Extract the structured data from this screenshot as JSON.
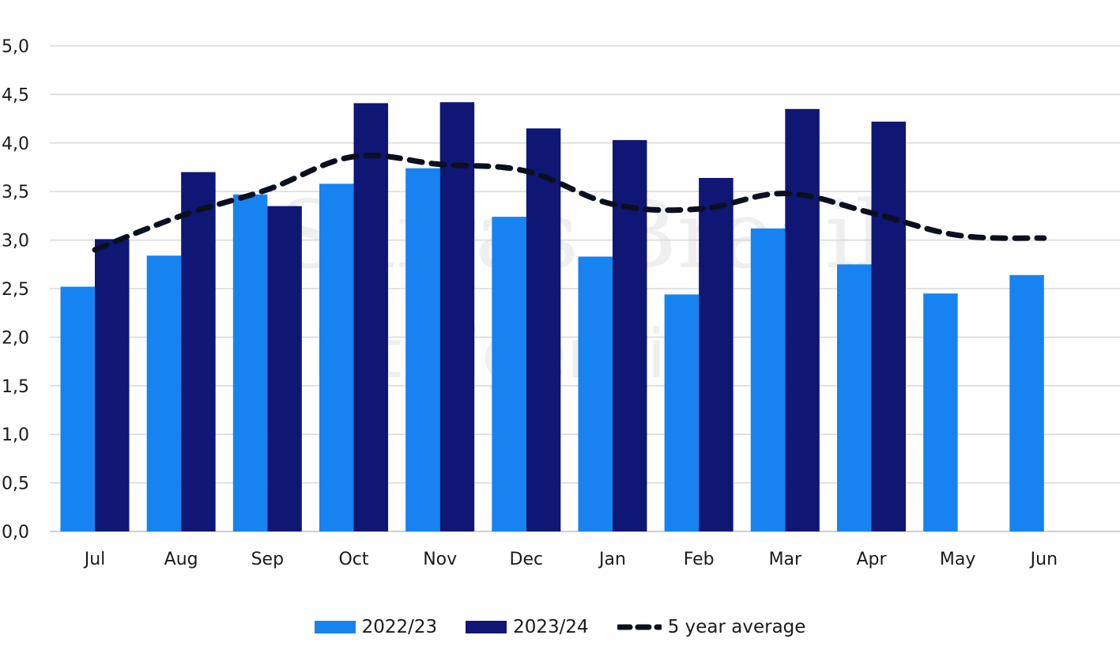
{
  "chart_data": {
    "type": "bar",
    "title": "",
    "xlabel": "",
    "ylabel": "",
    "ylim": [
      0,
      5
    ],
    "yticks": [
      "0,0",
      "0,5",
      "1,0",
      "1,5",
      "2,0",
      "2,5",
      "3,0",
      "3,5",
      "4,0",
      "4,5",
      "5,0"
    ],
    "grid": true,
    "legend_position": "bottom",
    "categories": [
      "Jul",
      "Aug",
      "Sep",
      "Oct",
      "Nov",
      "Dec",
      "Jan",
      "Feb",
      "Mar",
      "Apr",
      "May",
      "Jun"
    ],
    "series": [
      {
        "name": "2022/23",
        "kind": "bar",
        "color": "#1683f0",
        "values": [
          2.52,
          2.84,
          3.47,
          3.58,
          3.74,
          3.24,
          2.83,
          2.44,
          3.12,
          2.75,
          2.45,
          2.64
        ]
      },
      {
        "name": "2023/24",
        "kind": "bar",
        "color": "#0f1674",
        "values": [
          3.01,
          3.7,
          3.35,
          4.41,
          4.42,
          4.15,
          4.03,
          3.64,
          4.35,
          4.22,
          null,
          null
        ]
      },
      {
        "name": "5 year average",
        "kind": "line",
        "style": "dashed",
        "color": "#0b1020",
        "values": [
          2.9,
          3.25,
          3.52,
          3.86,
          3.78,
          3.71,
          3.37,
          3.32,
          3.48,
          3.28,
          3.05,
          3.02
        ]
      }
    ]
  },
  "watermark": {
    "main": "Safras Brasil",
    "sub": "Inteligência"
  }
}
